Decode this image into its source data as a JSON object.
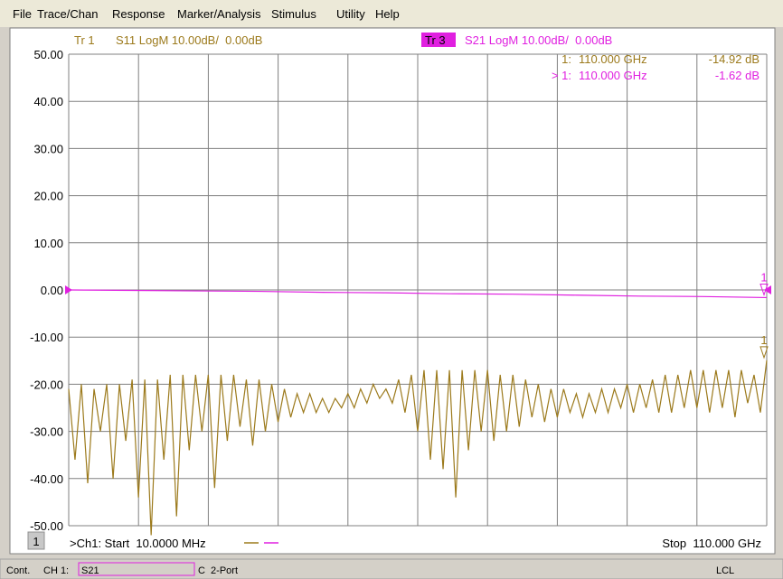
{
  "menu": [
    "File",
    "Trace/Chan",
    "Response",
    "Marker/Analysis",
    "Stimulus",
    "Utility",
    "Help"
  ],
  "chart_data": {
    "type": "line",
    "xlim": [
      0.01,
      110
    ],
    "ylim": [
      -50,
      50
    ],
    "yticks": [
      {
        "value": 50,
        "label": "50.00"
      },
      {
        "value": 40,
        "label": "40.00"
      },
      {
        "value": 30,
        "label": "30.00"
      },
      {
        "value": 20,
        "label": "20.00"
      },
      {
        "value": 10,
        "label": "10.00"
      },
      {
        "value": 0,
        "label": "0.00"
      },
      {
        "value": -10,
        "label": "-10.00"
      },
      {
        "value": -20,
        "label": "-20.00"
      },
      {
        "value": -30,
        "label": "-30.00"
      },
      {
        "value": -40,
        "label": "-40.00"
      },
      {
        "value": -50,
        "label": "-50.00"
      }
    ],
    "grid": true,
    "series": [
      {
        "name": "Tr 1",
        "label": "S11 LogM 10.00dB/  0.00dB",
        "color": "#9c7a1c",
        "x": [
          0.01,
          1,
          2,
          3,
          4,
          5,
          6,
          7,
          8,
          9,
          10,
          11,
          12,
          13,
          14,
          15,
          16,
          17,
          18,
          19,
          20,
          21,
          22,
          23,
          24,
          25,
          26,
          27,
          28,
          29,
          30,
          31,
          32,
          33,
          34,
          35,
          36,
          37,
          38,
          39,
          40,
          41,
          42,
          43,
          44,
          45,
          46,
          47,
          48,
          49,
          50,
          51,
          52,
          53,
          54,
          55,
          56,
          57,
          58,
          59,
          60,
          61,
          62,
          63,
          64,
          65,
          66,
          67,
          68,
          69,
          70,
          71,
          72,
          73,
          74,
          75,
          76,
          77,
          78,
          79,
          80,
          81,
          82,
          83,
          84,
          85,
          86,
          87,
          88,
          89,
          90,
          91,
          92,
          93,
          94,
          95,
          96,
          97,
          98,
          99,
          100,
          101,
          102,
          103,
          104,
          105,
          106,
          107,
          108,
          109,
          110
        ],
        "values": [
          -21,
          -36,
          -20,
          -41,
          -21,
          -30,
          -20,
          -40,
          -20,
          -32,
          -19,
          -44,
          -19,
          -52,
          -19,
          -36,
          -18,
          -48,
          -18,
          -34,
          -18,
          -30,
          -18,
          -42,
          -18,
          -32,
          -18,
          -29,
          -19,
          -33,
          -19,
          -30,
          -20,
          -28,
          -21,
          -27,
          -22,
          -26,
          -22,
          -26,
          -23,
          -26,
          -23,
          -25,
          -22,
          -25,
          -21,
          -24,
          -20,
          -23,
          -21,
          -24,
          -19,
          -26,
          -18,
          -30,
          -17,
          -36,
          -17,
          -38,
          -17,
          -44,
          -17,
          -34,
          -17,
          -30,
          -17,
          -32,
          -18,
          -30,
          -18,
          -29,
          -19,
          -27,
          -20,
          -28,
          -21,
          -27,
          -21,
          -26,
          -22,
          -27,
          -22,
          -26,
          -21,
          -26,
          -21,
          -25,
          -20,
          -26,
          -20,
          -25,
          -19,
          -26,
          -18,
          -26,
          -18,
          -25,
          -17,
          -25,
          -17,
          -26,
          -17,
          -25,
          -17,
          -27,
          -17,
          -24,
          -18,
          -26,
          -14.92
        ]
      },
      {
        "name": "Tr 3",
        "label": "S21 LogM 10.00dB/  0.00dB",
        "color": "#e020e0",
        "x": [
          0.01,
          10,
          20,
          30,
          40,
          50,
          60,
          70,
          80,
          90,
          100,
          110
        ],
        "values": [
          0,
          -0.1,
          -0.2,
          -0.3,
          -0.5,
          -0.6,
          -0.8,
          -0.9,
          -1.1,
          -1.3,
          -1.4,
          -1.62
        ]
      }
    ],
    "markers": [
      {
        "id": "1",
        "readout_label": "1:",
        "x_label": "110.000 GHz",
        "value_label": "-14.92 dB",
        "x": 110,
        "value": -14.92,
        "series": 0
      },
      {
        "id": "1",
        "readout_label": "> 1:",
        "x_label": "110.000 GHz",
        "value_label": "-1.62 dB",
        "x": 110,
        "value": -1.62,
        "series": 1
      }
    ],
    "channel_number": "1",
    "start_label": ">Ch1: Start  10.0000 MHz",
    "stop_label": "Stop  110.000 GHz"
  },
  "status_bar": {
    "mode": "Cont.",
    "channel": "CH 1:",
    "parameter": "S21",
    "calibration": "C  2-Port",
    "control": "LCL"
  }
}
